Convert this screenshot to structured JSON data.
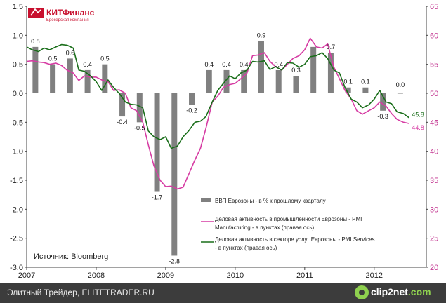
{
  "logo": {
    "name": "КИТФинанс",
    "subtitle": "Брокерская компания",
    "color": "#c8102e"
  },
  "source": "Источник: Bloomberg",
  "footer": {
    "left_text": "Элитный Трейдер, ELITETRADER.RU",
    "brand_main": "clip2net",
    "brand_suffix": ".com"
  },
  "chart_data": {
    "type": "bar+line",
    "title": "",
    "x_axis": {
      "ticks": [
        "2007",
        "2008",
        "2009",
        "2010",
        "2011",
        "2012"
      ],
      "tick_positions": [
        2007,
        2008,
        2009,
        2010,
        2011,
        2012
      ],
      "range": [
        2007,
        2012.75
      ]
    },
    "y_left": {
      "range": [
        -3.0,
        1.5
      ],
      "ticks": [
        "1.5",
        "1.0",
        "0.5",
        "0.0",
        "-0.5",
        "-1.0",
        "-1.5",
        "-2.0",
        "-2.5",
        "-3.0"
      ]
    },
    "y_right": {
      "range": [
        20,
        65
      ],
      "ticks": [
        "65",
        "60",
        "55",
        "50",
        "45",
        "40",
        "35",
        "30",
        "25",
        "20"
      ]
    },
    "grid": false,
    "legend_position": "bottom-right",
    "bars": {
      "name": "ВВП Еврозоны - в % к прошлому кварталу",
      "color": "#808080",
      "x": [
        2007.125,
        2007.375,
        2007.625,
        2007.875,
        2008.125,
        2008.375,
        2008.625,
        2008.875,
        2009.125,
        2009.375,
        2009.625,
        2009.875,
        2010.125,
        2010.375,
        2010.625,
        2010.875,
        2011.125,
        2011.375,
        2011.625,
        2011.875,
        2012.125,
        2012.375
      ],
      "values": [
        0.8,
        0.5,
        0.6,
        0.4,
        0.5,
        -0.4,
        -0.5,
        -1.7,
        -2.8,
        -0.2,
        0.4,
        0.4,
        0.4,
        0.9,
        0.4,
        0.3,
        0.8,
        0.7,
        0.1,
        0.1,
        -0.3,
        0.0
      ],
      "labels": [
        "0.8",
        "0.5",
        "0.6",
        "0.4",
        "0.5",
        "-0.4",
        "-0.5",
        "-1.7",
        "-2.8",
        "-0.2",
        "0.4",
        "0.4",
        "0.4",
        "0.9",
        "0.4",
        "0.3",
        "0.8",
        "0.7",
        "0.1",
        "0.1",
        "-0.3",
        "0.0"
      ],
      "show_label": [
        true,
        true,
        true,
        true,
        true,
        true,
        true,
        true,
        true,
        true,
        true,
        true,
        true,
        true,
        true,
        true,
        false,
        true,
        true,
        true,
        true,
        true
      ]
    },
    "series": [
      {
        "name": "Деловая активность в промышленности Еврозоны - PMI Manufacturing - в пунктах (правая ось)",
        "legend_lines": [
          "Деловая активность в промышленности Еврозоны - PMI",
          "Manufacturing - в пунктах  (правая  ось)"
        ],
        "color": "#d63ca3",
        "x": [
          2007.0,
          2007.08,
          2007.17,
          2007.25,
          2007.33,
          2007.42,
          2007.5,
          2007.58,
          2007.67,
          2007.75,
          2007.83,
          2007.92,
          2008.0,
          2008.08,
          2008.17,
          2008.25,
          2008.33,
          2008.42,
          2008.5,
          2008.58,
          2008.67,
          2008.75,
          2008.83,
          2008.92,
          2009.0,
          2009.08,
          2009.17,
          2009.25,
          2009.33,
          2009.42,
          2009.5,
          2009.58,
          2009.67,
          2009.75,
          2009.83,
          2009.92,
          2010.0,
          2010.08,
          2010.17,
          2010.25,
          2010.33,
          2010.42,
          2010.5,
          2010.58,
          2010.67,
          2010.75,
          2010.83,
          2010.92,
          2011.0,
          2011.08,
          2011.17,
          2011.25,
          2011.33,
          2011.42,
          2011.5,
          2011.58,
          2011.67,
          2011.75,
          2011.83,
          2011.92,
          2012.0,
          2012.08,
          2012.17,
          2012.25,
          2012.33,
          2012.42,
          2012.5
        ],
        "values": [
          55.5,
          55.6,
          55.4,
          55.3,
          55.0,
          55.2,
          54.8,
          54.0,
          53.5,
          52.2,
          53.0,
          52.8,
          52.8,
          52.3,
          52.0,
          50.5,
          50.6,
          50.0,
          47.5,
          47.0,
          45.0,
          41.1,
          37.5,
          35.0,
          33.9,
          34.0,
          33.5,
          33.8,
          36.0,
          38.5,
          40.5,
          44.0,
          48.5,
          49.5,
          51.0,
          51.5,
          51.7,
          52.5,
          53.5,
          56.5,
          56.6,
          57.0,
          55.5,
          54.6,
          54.0,
          55.0,
          56.0,
          56.5,
          57.5,
          59.5,
          58.0,
          57.8,
          58.5,
          54.5,
          52.5,
          50.5,
          49.0,
          47.0,
          46.4,
          47.0,
          47.5,
          48.5,
          47.8,
          46.5,
          45.5,
          45.0,
          44.8
        ],
        "end_label": "44.8"
      },
      {
        "name": "Деловая активность в секторе услуг Еврозоны - PMI Services - в пунктах (правая ось)",
        "legend_lines": [
          "Деловая активность в секторе услуг Еврозоны - PMI Services",
          "- в пунктах  (правая  ось)"
        ],
        "color": "#1a6e1a",
        "x": [
          2007.0,
          2007.08,
          2007.17,
          2007.25,
          2007.33,
          2007.42,
          2007.5,
          2007.58,
          2007.67,
          2007.75,
          2007.83,
          2007.92,
          2008.0,
          2008.08,
          2008.17,
          2008.25,
          2008.33,
          2008.42,
          2008.5,
          2008.58,
          2008.67,
          2008.75,
          2008.83,
          2008.92,
          2009.0,
          2009.08,
          2009.17,
          2009.25,
          2009.33,
          2009.42,
          2009.5,
          2009.58,
          2009.67,
          2009.75,
          2009.83,
          2009.92,
          2010.0,
          2010.08,
          2010.17,
          2010.25,
          2010.33,
          2010.42,
          2010.5,
          2010.58,
          2010.67,
          2010.75,
          2010.83,
          2010.92,
          2011.0,
          2011.08,
          2011.17,
          2011.25,
          2011.33,
          2011.42,
          2011.5,
          2011.58,
          2011.67,
          2011.75,
          2011.83,
          2011.92,
          2012.0,
          2012.08,
          2012.17,
          2012.25,
          2012.33,
          2012.42,
          2012.5
        ],
        "values": [
          58.0,
          57.5,
          57.2,
          57.8,
          57.5,
          58.0,
          58.4,
          58.3,
          57.8,
          54.0,
          53.8,
          53.0,
          52.0,
          50.5,
          52.3,
          51.0,
          50.0,
          48.5,
          48.1,
          48.0,
          47.5,
          43.5,
          42.5,
          42.0,
          42.5,
          40.5,
          40.9,
          42.5,
          43.5,
          45.0,
          45.2,
          46.0,
          48.5,
          50.5,
          51.7,
          53.0,
          52.5,
          53.5,
          54.0,
          55.5,
          55.4,
          55.6,
          54.1,
          54.6,
          54.0,
          55.3,
          55.2,
          54.5,
          55.0,
          56.3,
          56.5,
          57.0,
          56.0,
          54.0,
          53.5,
          51.0,
          49.0,
          48.5,
          47.5,
          48.0,
          49.0,
          50.5,
          48.5,
          48.2,
          46.8,
          46.5,
          45.8
        ],
        "end_label": "45.8"
      }
    ]
  }
}
